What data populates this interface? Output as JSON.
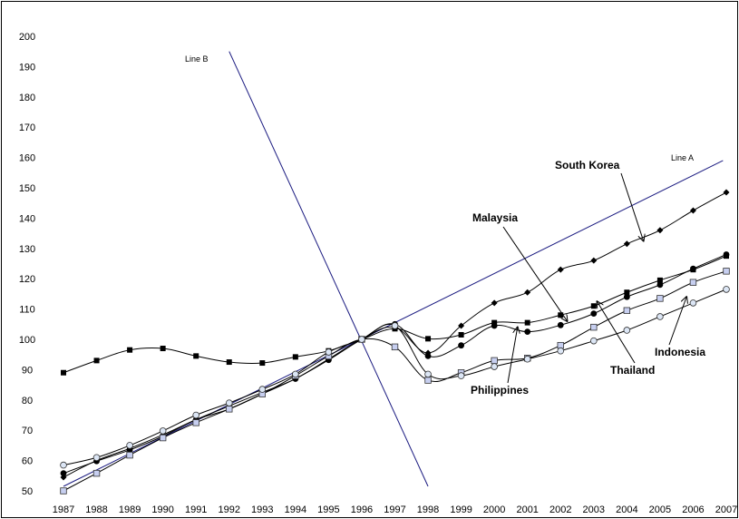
{
  "chart_data": {
    "type": "line",
    "title": "",
    "xlabel": "",
    "ylabel": "",
    "grid": false,
    "ylim": [
      50,
      200
    ],
    "yticks": [
      "50",
      "60",
      "70",
      "80",
      "90",
      "100",
      "110",
      "120",
      "130",
      "140",
      "150",
      "160",
      "170",
      "180",
      "190",
      "200"
    ],
    "categories": [
      "1987",
      "1988",
      "1989",
      "1990",
      "1991",
      "1992",
      "1993",
      "1994",
      "1995",
      "1996",
      "1997",
      "1998",
      "1999",
      "2000",
      "2001",
      "2002",
      "2003",
      "2004",
      "2005",
      "2006",
      "2007"
    ],
    "series": [
      {
        "marker": "diamond",
        "values": [
          54.5,
          60,
          64,
          68.5,
          73.5,
          78,
          82.5,
          87,
          93.5,
          100,
          104,
          95.5,
          104.5,
          112,
          115.5,
          123,
          126,
          131.5,
          136,
          142.5,
          148.5
        ]
      },
      {
        "marker": "square",
        "values": [
          89,
          93,
          96.5,
          97,
          94.5,
          92.5,
          92.2,
          94.2,
          96.2,
          100,
          103.5,
          100.2,
          101.5,
          105.5,
          105.5,
          108,
          111,
          115.5,
          119.5,
          123,
          127.5
        ]
      },
      {
        "marker": "circle",
        "values": [
          55.8,
          59.8,
          63.5,
          68,
          73.5,
          77,
          82,
          87,
          93.2,
          100,
          105,
          94.5,
          98,
          104.5,
          102.5,
          104.7,
          108.5,
          114,
          118,
          123.3,
          128
        ]
      },
      {
        "marker": "open-square",
        "values": [
          50,
          55.8,
          61.8,
          67.5,
          72.5,
          77,
          82,
          88,
          94.5,
          100,
          97.5,
          86.5,
          89,
          93,
          93.8,
          98,
          104,
          109.5,
          113.5,
          118.8,
          122.5
        ]
      },
      {
        "marker": "open-circle",
        "values": [
          58.5,
          61,
          65,
          69.8,
          75,
          79,
          83.5,
          88.5,
          95.8,
          100,
          104.5,
          88.5,
          88,
          91,
          93.5,
          96.2,
          99.5,
          103,
          107.5,
          112,
          116.5
        ]
      }
    ],
    "reference_lines": [
      {
        "name": "Line A",
        "from": [
          "1987",
          51.5
        ],
        "to": [
          "2006.9",
          159
        ]
      },
      {
        "name": "Line B",
        "from": [
          "1992",
          195
        ],
        "to": [
          "1998",
          51.5
        ]
      }
    ],
    "annotations": [
      {
        "text": "South Korea",
        "points_to": [
          "2004.5",
          132.5
        ]
      },
      {
        "text": "Malaysia",
        "points_to": [
          "2002.2",
          106
        ]
      },
      {
        "text": "Philippines",
        "points_to": [
          "2000.7",
          104
        ]
      },
      {
        "text": "Thailand",
        "points_to": [
          "2003.1",
          112.5
        ]
      },
      {
        "text": "Indonesia",
        "points_to": [
          "2005.8",
          114
        ]
      },
      {
        "text": "Line A"
      },
      {
        "text": "Line B"
      }
    ],
    "colors": {
      "series": "#000000",
      "reference": "#1a1a80",
      "open_fill": "#c7cff0",
      "open_circle_fill": "#dce6f5"
    }
  }
}
